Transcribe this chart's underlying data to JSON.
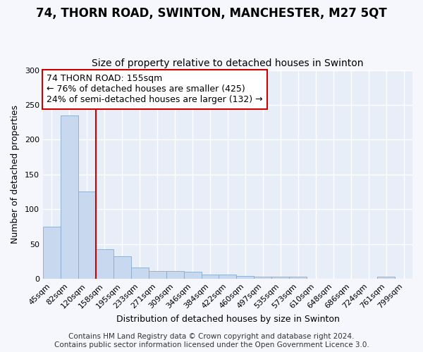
{
  "title1": "74, THORN ROAD, SWINTON, MANCHESTER, M27 5QT",
  "title2": "Size of property relative to detached houses in Swinton",
  "xlabel": "Distribution of detached houses by size in Swinton",
  "ylabel": "Number of detached properties",
  "categories": [
    "45sqm",
    "82sqm",
    "120sqm",
    "158sqm",
    "195sqm",
    "233sqm",
    "271sqm",
    "309sqm",
    "346sqm",
    "384sqm",
    "422sqm",
    "460sqm",
    "497sqm",
    "535sqm",
    "573sqm",
    "610sqm",
    "648sqm",
    "686sqm",
    "724sqm",
    "761sqm",
    "799sqm"
  ],
  "values": [
    75,
    235,
    126,
    43,
    33,
    16,
    11,
    11,
    10,
    6,
    6,
    4,
    3,
    3,
    3,
    0,
    0,
    0,
    0,
    3,
    0
  ],
  "bar_color": "#c8d8ee",
  "bar_edgecolor": "#88aacc",
  "bar_linewidth": 0.6,
  "vline_x": 2.5,
  "vline_color": "#cc0000",
  "vline_linewidth": 1.5,
  "annotation_text": "74 THORN ROAD: 155sqm\n← 76% of detached houses are smaller (425)\n24% of semi-detached houses are larger (132) →",
  "annotation_box_facecolor": "#ffffff",
  "annotation_box_edgecolor": "#cc0000",
  "ylim": [
    0,
    300
  ],
  "yticks": [
    0,
    50,
    100,
    150,
    200,
    250,
    300
  ],
  "plot_bg_color": "#e8eef8",
  "fig_bg_color": "#f5f7fc",
  "grid_color": "#ffffff",
  "title1_fontsize": 12,
  "title2_fontsize": 10,
  "xlabel_fontsize": 9,
  "ylabel_fontsize": 9,
  "tick_fontsize": 8,
  "annotation_fontsize": 9,
  "footer_fontsize": 7.5,
  "footer_text": "Contains HM Land Registry data © Crown copyright and database right 2024.\nContains public sector information licensed under the Open Government Licence 3.0."
}
